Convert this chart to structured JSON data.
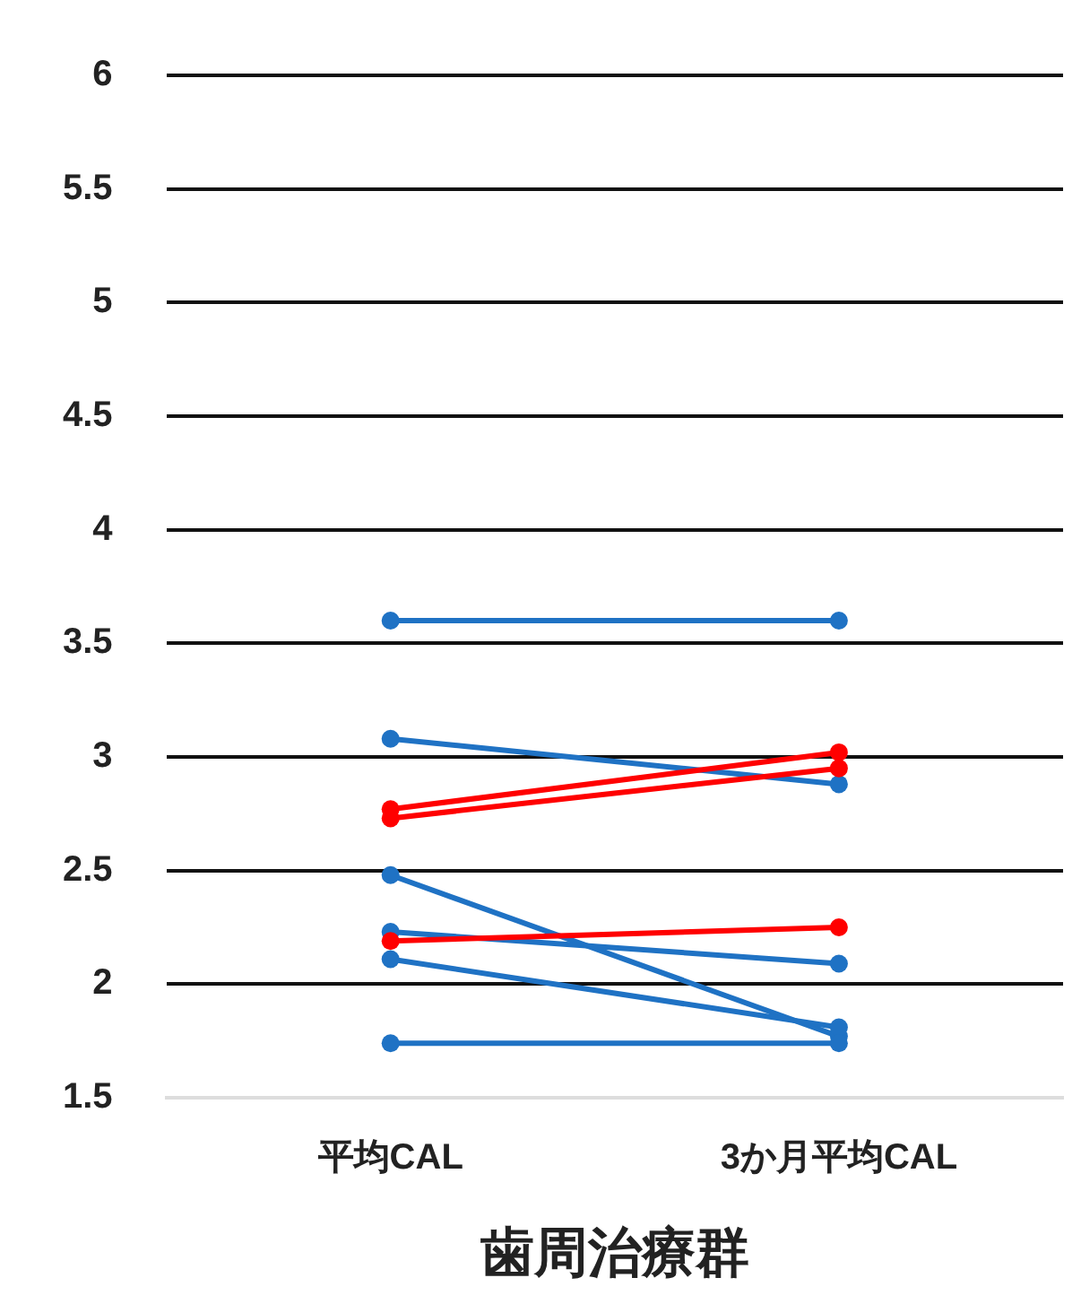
{
  "chart_data": {
    "type": "line",
    "xlabel": "歯周治療群",
    "categories": [
      "平均CAL",
      "3か月平均CAL"
    ],
    "series": [
      {
        "color": "#1f72c4",
        "values": [
          3.6,
          3.6
        ]
      },
      {
        "color": "#1f72c4",
        "values": [
          3.08,
          2.88
        ]
      },
      {
        "color": "#ff0000",
        "values": [
          2.77,
          3.02
        ]
      },
      {
        "color": "#ff0000",
        "values": [
          2.73,
          2.95
        ]
      },
      {
        "color": "#1f72c4",
        "values": [
          2.48,
          1.77
        ]
      },
      {
        "color": "#1f72c4",
        "values": [
          2.23,
          2.09
        ]
      },
      {
        "color": "#ff0000",
        "values": [
          2.19,
          2.25
        ]
      },
      {
        "color": "#1f72c4",
        "values": [
          2.11,
          1.81
        ]
      },
      {
        "color": "#1f72c4",
        "values": [
          1.74,
          1.74
        ]
      }
    ],
    "ylim": [
      1.5,
      6
    ],
    "yticks": [
      1.5,
      2,
      2.5,
      3,
      3.5,
      4,
      4.5,
      5,
      5.5,
      6
    ],
    "grid": "y",
    "legend": false,
    "marker": "circle",
    "line_style": "solid"
  }
}
